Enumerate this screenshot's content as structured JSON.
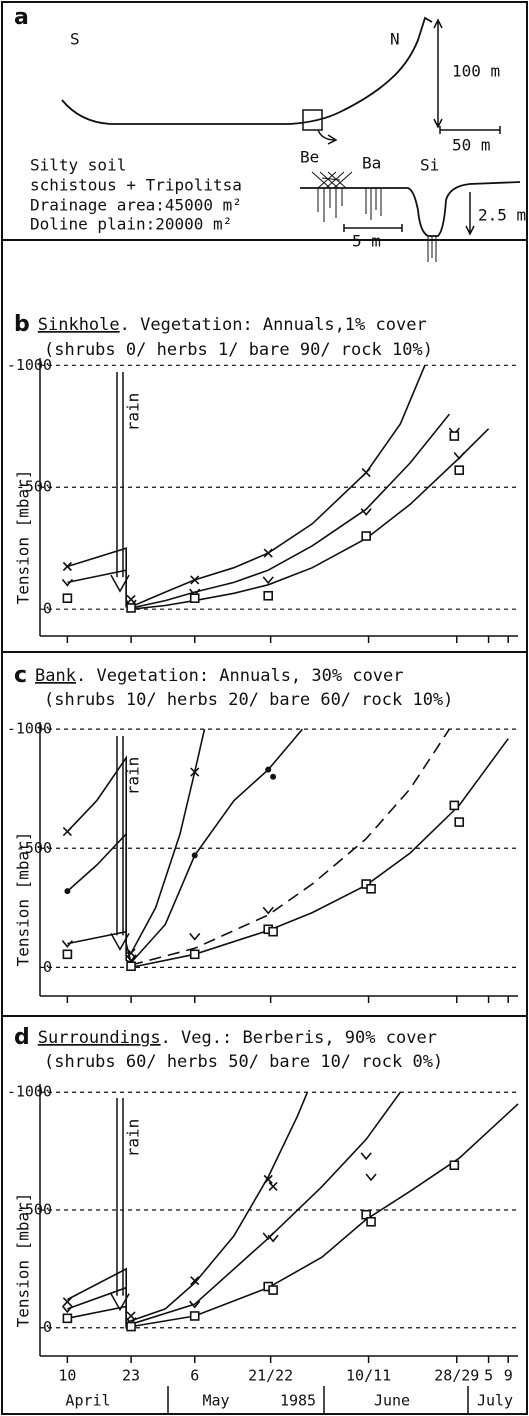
{
  "panel_a": {
    "label": "a",
    "profile_labels": [
      "S",
      "N",
      "100 m",
      "50 m"
    ],
    "section_labels": [
      "Be",
      "Ba",
      "Si",
      "2.5 m",
      "5 m"
    ],
    "site_notes": [
      "Silty soil",
      "schistous + Tripolitsa",
      "Drainage area:45000 m²",
      "Doline plain:20000 m²"
    ]
  },
  "chart_data": [
    {
      "type": "scatter",
      "panel": "b",
      "title_site": "Sinkhole",
      "title_rest": ". Vegetation: Annuals,1% cover",
      "subtitle": "(shrubs 0/ herbs 1/ bare 90/ rock 10%)",
      "y_label": "Tension [mbar]",
      "annotation": "rain",
      "xlim": [
        4,
        102
      ],
      "xticks": [
        10,
        23,
        36,
        51.5,
        71.5,
        89.5,
        96,
        100
      ],
      "ylim": [
        -110,
        1030
      ],
      "yticks": [
        0,
        {
          "value": 500,
          "label": "-500"
        },
        {
          "value": 1000,
          "label": "-1000"
        }
      ],
      "grid": true,
      "color": "#111111",
      "series": [
        {
          "marker": "x",
          "x": [
            10,
            23,
            36,
            51,
            71
          ],
          "values": [
            175,
            40,
            120,
            230,
            560
          ]
        },
        {
          "marker": "check",
          "x": [
            10,
            23,
            36,
            51,
            71,
            89,
            90
          ],
          "values": [
            110,
            25,
            70,
            120,
            400,
            730,
            630
          ]
        },
        {
          "marker": "square",
          "x": [
            10,
            23,
            36,
            51,
            71,
            89,
            90
          ],
          "values": [
            45,
            5,
            45,
            55,
            300,
            710,
            570
          ]
        }
      ],
      "curves": [
        {
          "dashed": false,
          "x": [
            10,
            22,
            22,
            23,
            30,
            36,
            44,
            51,
            60,
            71,
            78,
            83
          ],
          "values": [
            175,
            250,
            20,
            10,
            70,
            120,
            170,
            230,
            350,
            560,
            760,
            1000
          ]
        },
        {
          "dashed": false,
          "x": [
            10,
            22,
            22,
            23,
            30,
            36,
            44,
            51,
            60,
            71,
            80,
            88
          ],
          "values": [
            110,
            160,
            10,
            5,
            35,
            70,
            110,
            160,
            260,
            410,
            600,
            800
          ]
        },
        {
          "dashed": false,
          "x": [
            23,
            30,
            36,
            44,
            51,
            60,
            71,
            80,
            90,
            96
          ],
          "values": [
            0,
            15,
            35,
            65,
            100,
            170,
            290,
            430,
            620,
            740
          ]
        }
      ]
    },
    {
      "type": "scatter",
      "panel": "c",
      "title_site": "Bank",
      "title_rest": ". Vegetation: Annuals, 30% cover",
      "subtitle": "(shrubs 10/ herbs 20/ bare 60/ rock 10%)",
      "y_label": "Tension [mbar]",
      "annotation": "rain",
      "xlim": [
        4,
        102
      ],
      "xticks": [
        10,
        23,
        36,
        51.5,
        71.5,
        89.5,
        96,
        100
      ],
      "ylim": [
        -120,
        1030
      ],
      "yticks": [
        0,
        {
          "value": 500,
          "label": "-500"
        },
        {
          "value": 1000,
          "label": "-1000"
        }
      ],
      "grid": true,
      "color": "#111111",
      "series": [
        {
          "marker": "x",
          "x": [
            10,
            23,
            36
          ],
          "values": [
            570,
            60,
            820
          ]
        },
        {
          "marker": "dot",
          "x": [
            10,
            36,
            51,
            52
          ],
          "values": [
            320,
            470,
            830,
            800
          ]
        },
        {
          "marker": "check",
          "x": [
            10,
            23,
            36,
            51
          ],
          "values": [
            100,
            40,
            130,
            240
          ]
        },
        {
          "marker": "square",
          "x": [
            10,
            23,
            36,
            51,
            52,
            71,
            72,
            89,
            90
          ],
          "values": [
            55,
            5,
            55,
            160,
            150,
            350,
            330,
            680,
            610
          ]
        }
      ],
      "curves": [
        {
          "dashed": false,
          "x": [
            10,
            16,
            22,
            22,
            23,
            28,
            33,
            36,
            38
          ],
          "values": [
            570,
            700,
            880,
            60,
            60,
            250,
            560,
            820,
            1000
          ]
        },
        {
          "dashed": false,
          "x": [
            10,
            16,
            22,
            22,
            23,
            30,
            36,
            44,
            51,
            58
          ],
          "values": [
            320,
            430,
            560,
            100,
            20,
            180,
            470,
            700,
            830,
            1000
          ]
        },
        {
          "dashed": false,
          "x": [
            10,
            22,
            22,
            23
          ],
          "values": [
            100,
            150,
            30,
            20
          ]
        },
        {
          "dashed": true,
          "x": [
            23,
            36,
            51,
            60,
            71,
            80,
            88
          ],
          "values": [
            10,
            80,
            220,
            350,
            540,
            750,
            1000
          ]
        },
        {
          "dashed": false,
          "x": [
            23,
            36,
            51,
            60,
            71,
            80,
            90,
            100
          ],
          "values": [
            0,
            55,
            155,
            230,
            345,
            480,
            680,
            960
          ]
        }
      ]
    },
    {
      "type": "scatter",
      "panel": "d",
      "title_site": "Surroundings",
      "title_rest": ". Veg.: Berberis, 90% cover",
      "subtitle": "(shrubs 60/ herbs 50/ bare 10/ rock 0%)",
      "y_label": "Tension [mbar]",
      "annotation": "rain",
      "xlim": [
        4,
        102
      ],
      "xticks": [
        10,
        23,
        {
          "value": 36,
          "label": "6"
        },
        {
          "value": 51.5,
          "label": "21/22"
        },
        {
          "value": 71.5,
          "label": "10/11"
        },
        {
          "value": 89.5,
          "label": "28/29"
        },
        {
          "value": 96,
          "label": "5"
        },
        {
          "value": 100,
          "label": "9"
        }
      ],
      "month_labels": [
        "April",
        "May",
        "1985",
        "June",
        "July"
      ],
      "ylim": [
        -120,
        1035
      ],
      "yticks": [
        0,
        {
          "value": 500,
          "label": "-500"
        },
        {
          "value": 1000,
          "label": "-1000"
        }
      ],
      "grid": true,
      "color": "#111111",
      "series": [
        {
          "marker": "x",
          "x": [
            10,
            23,
            36,
            51,
            52
          ],
          "values": [
            110,
            50,
            200,
            630,
            600
          ]
        },
        {
          "marker": "check",
          "x": [
            10,
            23,
            36,
            51,
            52,
            71,
            72
          ],
          "values": [
            80,
            30,
            100,
            390,
            380,
            730,
            640
          ]
        },
        {
          "marker": "square",
          "x": [
            10,
            23,
            36,
            51,
            52,
            71,
            72,
            89
          ],
          "values": [
            40,
            5,
            50,
            175,
            160,
            480,
            450,
            690
          ]
        }
      ],
      "curves": [
        {
          "dashed": false,
          "x": [
            10,
            22,
            22,
            23,
            30,
            36,
            44,
            51,
            57,
            59
          ],
          "values": [
            120,
            250,
            20,
            30,
            80,
            190,
            390,
            640,
            900,
            1000
          ]
        },
        {
          "dashed": false,
          "x": [
            10,
            22,
            22,
            23,
            36,
            51,
            62,
            71,
            78
          ],
          "values": [
            80,
            170,
            10,
            15,
            100,
            380,
            600,
            800,
            1000
          ]
        },
        {
          "dashed": false,
          "x": [
            10,
            22,
            22,
            23,
            36,
            51,
            62,
            71,
            80,
            90,
            102
          ],
          "values": [
            40,
            90,
            0,
            5,
            50,
            170,
            300,
            460,
            580,
            720,
            950
          ]
        }
      ]
    }
  ]
}
